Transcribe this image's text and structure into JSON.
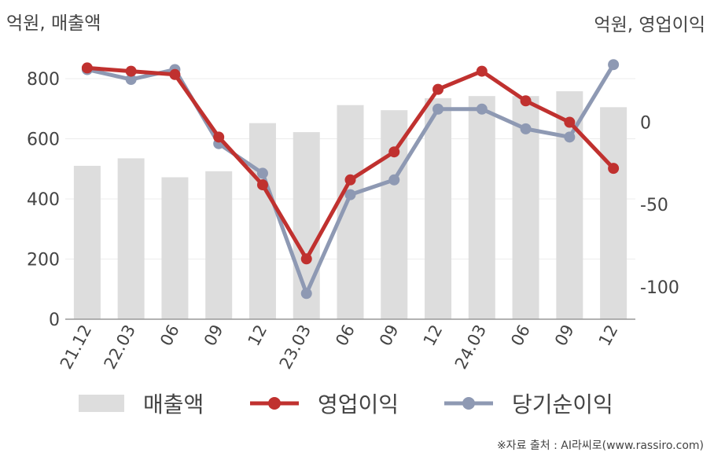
{
  "chart_data": {
    "type": "bar+line",
    "left_unit_label": "억원, 매출액",
    "right_unit_label": "억원, 영업이익",
    "categories": [
      "21.12",
      "22.03",
      "06",
      "09",
      "12",
      "23.03",
      "06",
      "09",
      "12",
      "24.03",
      "06",
      "09",
      "12"
    ],
    "left_axis": {
      "ylim": [
        0,
        900
      ],
      "ticks": [
        0,
        200,
        400,
        600,
        800
      ]
    },
    "right_axis": {
      "ylim": [
        -120,
        40
      ],
      "ticks": [
        -100,
        -50,
        0
      ]
    },
    "series": [
      {
        "name": "매출액",
        "kind": "bar",
        "axis": "left",
        "color": "#dddddd",
        "values": [
          510,
          535,
          472,
          492,
          652,
          622,
          712,
          695,
          735,
          742,
          742,
          758,
          705
        ]
      },
      {
        "name": "영업이익",
        "kind": "line",
        "axis": "right",
        "color": "#c0312f",
        "values": [
          33,
          31,
          29,
          -9,
          -38,
          -83,
          -35,
          -18,
          20,
          31,
          13,
          0,
          -28
        ]
      },
      {
        "name": "당기순이익",
        "kind": "line",
        "axis": "right",
        "color": "#8e99b3",
        "values": [
          32,
          26,
          32,
          -13,
          -31,
          -104,
          -44,
          -35,
          8,
          8,
          -4,
          -9,
          35
        ]
      }
    ],
    "grid": true,
    "legend_position": "bottom"
  },
  "footer": {
    "source": "※자료 출처 : AI라씨로(www.rassiro.com)"
  }
}
